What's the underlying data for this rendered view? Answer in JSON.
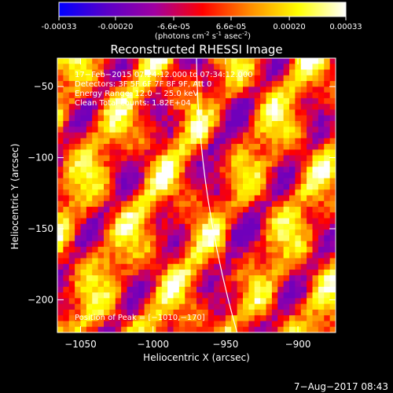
{
  "colorbar": {
    "ticks": [
      "-0.00033",
      "-0.00020",
      "-6.6e-05",
      "6.6e-05",
      "0.00020",
      "0.00033"
    ],
    "tick_values": [
      -0.00033,
      -0.0002,
      -6.6e-05,
      6.6e-05,
      0.0002,
      0.00033
    ],
    "range": [
      -0.00033,
      0.00033
    ],
    "units_text": "(photons cm",
    "units_exp1": "-2",
    "units_mid": " s",
    "units_exp2": "-1",
    "units_tail": " asec",
    "units_exp3": "-2",
    "units_close": ")",
    "colors": [
      "#0000ff",
      "#5a00c8",
      "#a000a0",
      "#ff0000",
      "#ff8c00",
      "#ffff00",
      "#ffffff"
    ]
  },
  "chart_data": {
    "type": "heatmap",
    "title": "Reconstructed RHESSI Image",
    "xlabel": "Heliocentric X (arcsec)",
    "ylabel": "Heliocentric Y (arcsec)",
    "xlim": [
      -1066,
      -874
    ],
    "ylim": [
      -223,
      -30
    ],
    "x_ticks": [
      -1050,
      -1000,
      -950,
      -900
    ],
    "x_tick_labels": [
      "−1050",
      "−1000",
      "−950",
      "−900"
    ],
    "y_ticks": [
      -50,
      -100,
      -150,
      -200
    ],
    "y_tick_labels": [
      "−50",
      "−100",
      "−150",
      "−200"
    ],
    "peak_position": [
      -1010,
      -170
    ],
    "limb_x_at_ylim": [
      -970,
      -942
    ],
    "annotations": [
      "17−Feb−2015 07:24:12.000 to 07:34:12.000",
      "Detectors: 3F 5F 6F 7F 8F 9F, Att 0",
      "Energy Range: 12.0 − 25.0 keV",
      "Clean     Total counts: 1.82E+04"
    ],
    "peak_label": "Position of Peak = [−1010,−170]"
  },
  "footer": {
    "timestamp": "7−Aug−2017 08:43"
  }
}
